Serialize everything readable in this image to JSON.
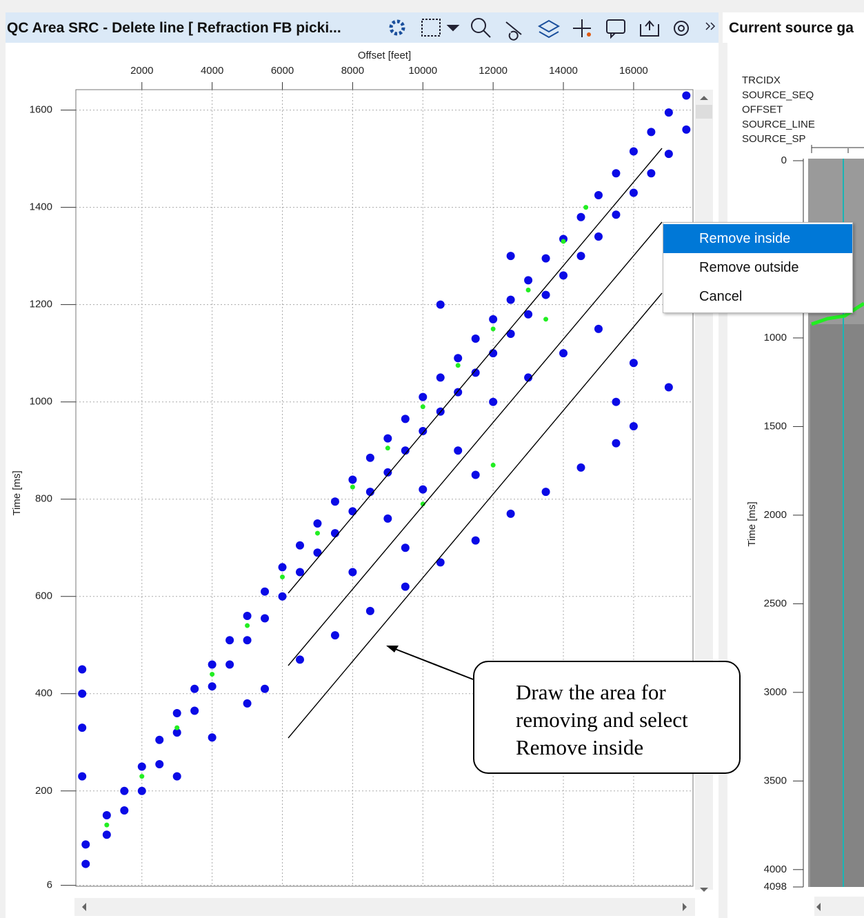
{
  "header": {
    "title": "QC Area SRC - Delete line [ Refraction FB picki...",
    "side_title": "Current source ga"
  },
  "chart_data": [
    {
      "type": "scatter",
      "xlabel": "Offset [feet]",
      "ylabel": "Time [ms]",
      "xlim": [
        120,
        17690
      ],
      "ylim": [
        4,
        1642
      ],
      "xticks": [
        2000,
        4000,
        6000,
        8000,
        10000,
        12000,
        14000,
        16000
      ],
      "yticks": [
        6,
        200,
        400,
        600,
        800,
        1000,
        1200,
        1400,
        1600
      ],
      "grid": true,
      "series": [
        {
          "color": "#0a0ae6",
          "x": [
            400,
            400,
            1000,
            1000,
            1500,
            1500,
            2000,
            2000,
            2500,
            2500,
            3000,
            3000,
            3500,
            3500,
            4000,
            4000,
            4500,
            4500,
            5000,
            5000,
            5500,
            5500,
            6000,
            6000,
            6500,
            6500,
            7000,
            7000,
            7500,
            7500,
            8000,
            8000,
            8500,
            8500,
            9000,
            9000,
            9500,
            9500,
            10000,
            10000,
            10500,
            10500,
            11000,
            11000,
            11500,
            11500,
            12000,
            12000,
            12500,
            12500,
            13000,
            13000,
            13500,
            13500,
            14000,
            14000,
            14500,
            14500,
            15000,
            15000,
            15500,
            15500,
            16000,
            16000,
            16500,
            16500,
            17000,
            17000,
            17500,
            17500,
            3000,
            4000,
            5000,
            5500,
            6500,
            7500,
            8500,
            9500,
            10500,
            11500,
            12500,
            13500,
            14500,
            15500,
            16000,
            8000,
            9000,
            10000,
            11000,
            12000,
            13000,
            14000,
            15000,
            16000,
            17000,
            10500,
            12500,
            15500,
            9500,
            11500,
            300,
            300,
            300,
            300
          ],
          "values": [
            90,
            50,
            150,
            110,
            200,
            160,
            250,
            200,
            305,
            255,
            360,
            320,
            410,
            365,
            460,
            415,
            510,
            460,
            560,
            510,
            610,
            555,
            660,
            600,
            705,
            650,
            750,
            690,
            795,
            730,
            840,
            775,
            885,
            815,
            925,
            855,
            965,
            900,
            1010,
            940,
            1050,
            980,
            1090,
            1020,
            1130,
            1060,
            1170,
            1100,
            1210,
            1140,
            1250,
            1180,
            1295,
            1220,
            1335,
            1260,
            1380,
            1300,
            1425,
            1340,
            1470,
            1385,
            1515,
            1430,
            1555,
            1470,
            1595,
            1510,
            1630,
            1560,
            230,
            310,
            380,
            410,
            470,
            520,
            570,
            620,
            670,
            715,
            770,
            815,
            865,
            915,
            950,
            650,
            760,
            820,
            900,
            1000,
            1050,
            1100,
            1150,
            1080,
            1030,
            1200,
            1300,
            1000,
            700,
            850,
            450,
            400,
            330,
            230
          ]
        },
        {
          "color": "#22ee22",
          "x": [
            1000,
            2000,
            3000,
            4000,
            5000,
            6000,
            7000,
            8000,
            9000,
            10000,
            11000,
            12000,
            13000,
            14000,
            14640,
            10000,
            12000,
            13500
          ],
          "values": [
            130,
            230,
            330,
            440,
            540,
            640,
            730,
            825,
            905,
            990,
            1075,
            1150,
            1230,
            1330,
            1400,
            790,
            870,
            1170
          ]
        }
      ]
    },
    {
      "type": "seismic",
      "ylabel": "Time [ms]",
      "header_labels": [
        "TRCIDX",
        "SOURCE_SEQ",
        "OFFSET",
        "SOURCE_LINE",
        "SOURCE_SP"
      ],
      "ylim": [
        0,
        4098
      ],
      "yticks": [
        0,
        1000,
        1500,
        2000,
        2500,
        3000,
        3500,
        4000,
        4098
      ]
    }
  ],
  "menu": {
    "items": [
      "Remove inside",
      "Remove outside",
      "Cancel"
    ]
  },
  "annotation": {
    "lines": [
      "Draw the area for",
      "removing and select",
      "Remove inside"
    ]
  }
}
